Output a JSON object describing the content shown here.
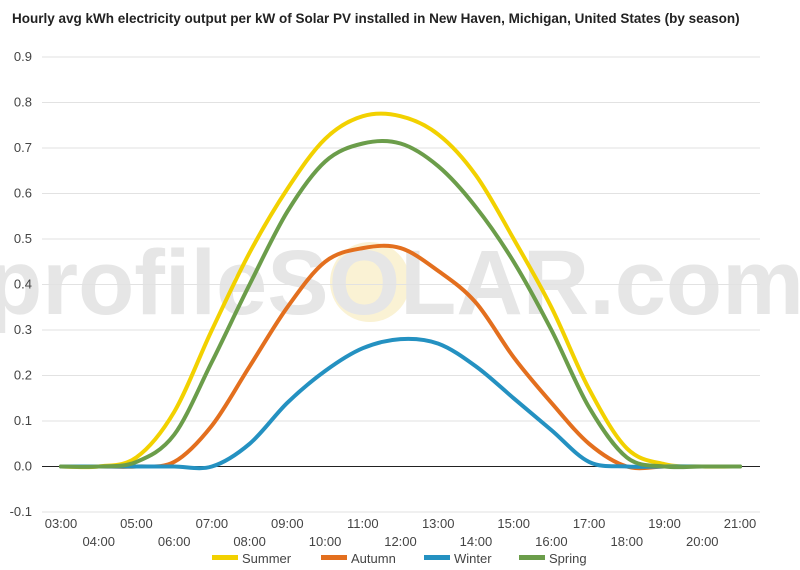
{
  "chart_data": {
    "type": "line",
    "title": "Hourly avg kWh electricity output per kW of Solar PV installed in New Haven, Michigan, United States (by season)",
    "watermark": "profileSOLAR.com",
    "x": [
      "03:00",
      "04:00",
      "05:00",
      "06:00",
      "07:00",
      "08:00",
      "09:00",
      "10:00",
      "11:00",
      "12:00",
      "13:00",
      "14:00",
      "15:00",
      "16:00",
      "17:00",
      "18:00",
      "19:00",
      "20:00",
      "21:00"
    ],
    "x_tick_labels_row1": [
      "03:00",
      "05:00",
      "07:00",
      "09:00",
      "11:00",
      "13:00",
      "15:00",
      "17:00",
      "19:00",
      "21:00"
    ],
    "x_tick_labels_row2": [
      "04:00",
      "06:00",
      "08:00",
      "10:00",
      "12:00",
      "14:00",
      "16:00",
      "18:00",
      "20:00"
    ],
    "ylim": [
      -0.1,
      0.9
    ],
    "y_ticks": [
      "-0.1",
      "0.0",
      "0.1",
      "0.2",
      "0.3",
      "0.4",
      "0.5",
      "0.6",
      "0.7",
      "0.8",
      "0.9"
    ],
    "grid": true,
    "legend_position": "bottom",
    "series": [
      {
        "name": "Summer",
        "color": "#f2d100",
        "values": [
          0,
          0,
          0.02,
          0.12,
          0.3,
          0.47,
          0.61,
          0.72,
          0.77,
          0.77,
          0.73,
          0.64,
          0.5,
          0.35,
          0.17,
          0.04,
          0.005,
          0,
          0
        ]
      },
      {
        "name": "Autumn",
        "color": "#e36f1e",
        "values": [
          0,
          0,
          0,
          0.01,
          0.09,
          0.22,
          0.35,
          0.45,
          0.48,
          0.48,
          0.43,
          0.36,
          0.24,
          0.14,
          0.05,
          0,
          0,
          0,
          0
        ]
      },
      {
        "name": "Winter",
        "color": "#2491c1",
        "values": [
          0,
          0,
          0,
          0,
          0,
          0.05,
          0.14,
          0.21,
          0.26,
          0.28,
          0.27,
          0.22,
          0.15,
          0.08,
          0.01,
          0,
          0,
          0,
          0
        ]
      },
      {
        "name": "Spring",
        "color": "#6b9d4a",
        "values": [
          0,
          0,
          0.01,
          0.07,
          0.23,
          0.4,
          0.56,
          0.67,
          0.71,
          0.71,
          0.66,
          0.57,
          0.45,
          0.3,
          0.13,
          0.02,
          0,
          0,
          0
        ]
      }
    ]
  }
}
